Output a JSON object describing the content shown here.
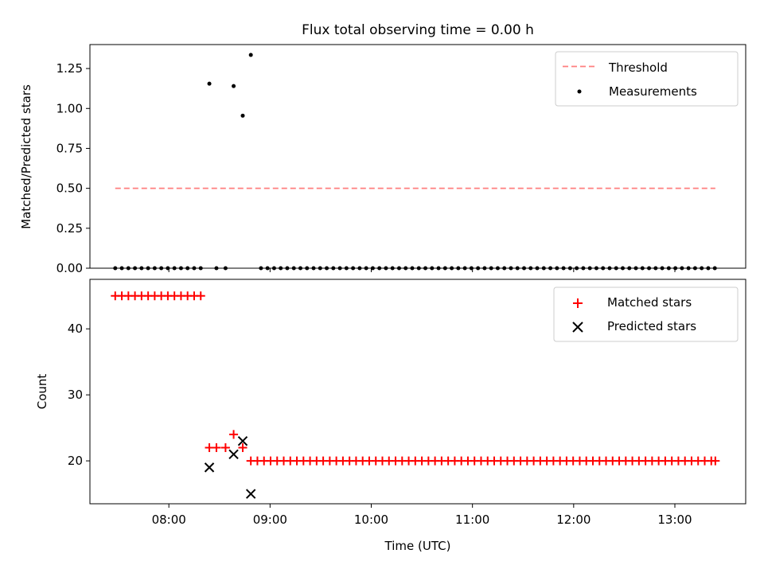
{
  "chart_data": {
    "title": "Flux total observing time = 0.00 h",
    "xlabel": "Time (UTC)",
    "x_unit": "hours UTC",
    "xlim": [
      7.22,
      13.7
    ],
    "xticks": [
      {
        "v": 8,
        "label": "08:00"
      },
      {
        "v": 9,
        "label": "09:00"
      },
      {
        "v": 10,
        "label": "10:00"
      },
      {
        "v": 11,
        "label": "11:00"
      },
      {
        "v": 12,
        "label": "12:00"
      },
      {
        "v": 13,
        "label": "13:00"
      }
    ],
    "colors": {
      "threshold": "#ff7f7f",
      "matched": "#ff0000",
      "predicted": "#000000",
      "measurement": "#000000"
    },
    "top": {
      "type": "scatter",
      "ylabel": "Matched/Predicted stars",
      "ylim": [
        0,
        1.4
      ],
      "yticks": [
        {
          "v": 0,
          "label": "0.00"
        },
        {
          "v": 0.25,
          "label": "0.25"
        },
        {
          "v": 0.5,
          "label": "0.50"
        },
        {
          "v": 0.75,
          "label": "0.75"
        },
        {
          "v": 1.0,
          "label": "1.00"
        },
        {
          "v": 1.25,
          "label": "1.25"
        }
      ],
      "threshold": {
        "name": "Threshold",
        "x": [
          7.47,
          13.4
        ],
        "y": 0.5
      },
      "legend": [
        "Threshold",
        "Measurements"
      ],
      "legend_loc": "upper right",
      "measurements": {
        "name": "Measurements",
        "points": [
          [
            7.47,
            0
          ],
          [
            7.535,
            0
          ],
          [
            7.6,
            0
          ],
          [
            7.665,
            0
          ],
          [
            7.73,
            0
          ],
          [
            7.795,
            0
          ],
          [
            7.86,
            0
          ],
          [
            7.925,
            0
          ],
          [
            7.99,
            0
          ],
          [
            8.055,
            0
          ],
          [
            8.12,
            0
          ],
          [
            8.185,
            0
          ],
          [
            8.25,
            0
          ],
          [
            8.315,
            0
          ],
          [
            8.4,
            1.155
          ],
          [
            8.47,
            0
          ],
          [
            8.56,
            0
          ],
          [
            8.64,
            1.14
          ],
          [
            8.73,
            0.955
          ],
          [
            8.81,
            1.335
          ],
          [
            8.91,
            0
          ],
          [
            8.975,
            0
          ],
          [
            9.04,
            0
          ],
          [
            9.105,
            0
          ],
          [
            9.17,
            0
          ],
          [
            9.235,
            0
          ],
          [
            9.3,
            0
          ],
          [
            9.365,
            0
          ],
          [
            9.43,
            0
          ],
          [
            9.495,
            0
          ],
          [
            9.56,
            0
          ],
          [
            9.625,
            0
          ],
          [
            9.69,
            0
          ],
          [
            9.755,
            0
          ],
          [
            9.82,
            0
          ],
          [
            9.885,
            0
          ],
          [
            9.95,
            0
          ],
          [
            10.015,
            0
          ],
          [
            10.08,
            0
          ],
          [
            10.145,
            0
          ],
          [
            10.21,
            0
          ],
          [
            10.275,
            0
          ],
          [
            10.34,
            0
          ],
          [
            10.405,
            0
          ],
          [
            10.47,
            0
          ],
          [
            10.535,
            0
          ],
          [
            10.6,
            0
          ],
          [
            10.665,
            0
          ],
          [
            10.73,
            0
          ],
          [
            10.795,
            0
          ],
          [
            10.86,
            0
          ],
          [
            10.925,
            0
          ],
          [
            10.99,
            0
          ],
          [
            11.055,
            0
          ],
          [
            11.12,
            0
          ],
          [
            11.185,
            0
          ],
          [
            11.25,
            0
          ],
          [
            11.315,
            0
          ],
          [
            11.38,
            0
          ],
          [
            11.445,
            0
          ],
          [
            11.51,
            0
          ],
          [
            11.575,
            0
          ],
          [
            11.64,
            0
          ],
          [
            11.705,
            0
          ],
          [
            11.77,
            0
          ],
          [
            11.835,
            0
          ],
          [
            11.9,
            0
          ],
          [
            11.965,
            0
          ],
          [
            12.03,
            0
          ],
          [
            12.095,
            0
          ],
          [
            12.16,
            0
          ],
          [
            12.225,
            0
          ],
          [
            12.29,
            0
          ],
          [
            12.355,
            0
          ],
          [
            12.42,
            0
          ],
          [
            12.485,
            0
          ],
          [
            12.55,
            0
          ],
          [
            12.615,
            0
          ],
          [
            12.68,
            0
          ],
          [
            12.745,
            0
          ],
          [
            12.81,
            0
          ],
          [
            12.875,
            0
          ],
          [
            12.94,
            0
          ],
          [
            13.005,
            0
          ],
          [
            13.07,
            0
          ],
          [
            13.135,
            0
          ],
          [
            13.2,
            0
          ],
          [
            13.265,
            0
          ],
          [
            13.33,
            0
          ],
          [
            13.395,
            0
          ]
        ]
      }
    },
    "bottom": {
      "type": "scatter",
      "ylabel": "Count",
      "ylim": [
        13.5,
        47.5
      ],
      "yticks": [
        {
          "v": 20,
          "label": "20"
        },
        {
          "v": 30,
          "label": "30"
        },
        {
          "v": 40,
          "label": "40"
        }
      ],
      "legend": [
        "Matched stars",
        "Predicted stars"
      ],
      "legend_loc": "upper right",
      "matched": {
        "name": "Matched stars",
        "points": [
          [
            7.47,
            45
          ],
          [
            7.535,
            45
          ],
          [
            7.6,
            45
          ],
          [
            7.665,
            45
          ],
          [
            7.73,
            45
          ],
          [
            7.795,
            45
          ],
          [
            7.86,
            45
          ],
          [
            7.925,
            45
          ],
          [
            7.99,
            45
          ],
          [
            8.055,
            45
          ],
          [
            8.12,
            45
          ],
          [
            8.185,
            45
          ],
          [
            8.25,
            45
          ],
          [
            8.315,
            45
          ],
          [
            8.4,
            22
          ],
          [
            8.47,
            22
          ],
          [
            8.56,
            22
          ],
          [
            8.64,
            24
          ],
          [
            8.73,
            22
          ],
          [
            8.81,
            20
          ],
          [
            8.875,
            20
          ],
          [
            8.94,
            20
          ],
          [
            9.005,
            20
          ],
          [
            9.07,
            20
          ],
          [
            9.135,
            20
          ],
          [
            9.2,
            20
          ],
          [
            9.265,
            20
          ],
          [
            9.33,
            20
          ],
          [
            9.395,
            20
          ],
          [
            9.46,
            20
          ],
          [
            9.525,
            20
          ],
          [
            9.59,
            20
          ],
          [
            9.655,
            20
          ],
          [
            9.72,
            20
          ],
          [
            9.785,
            20
          ],
          [
            9.85,
            20
          ],
          [
            9.915,
            20
          ],
          [
            9.98,
            20
          ],
          [
            10.045,
            20
          ],
          [
            10.11,
            20
          ],
          [
            10.175,
            20
          ],
          [
            10.24,
            20
          ],
          [
            10.305,
            20
          ],
          [
            10.37,
            20
          ],
          [
            10.435,
            20
          ],
          [
            10.5,
            20
          ],
          [
            10.565,
            20
          ],
          [
            10.63,
            20
          ],
          [
            10.695,
            20
          ],
          [
            10.76,
            20
          ],
          [
            10.825,
            20
          ],
          [
            10.89,
            20
          ],
          [
            10.955,
            20
          ],
          [
            11.02,
            20
          ],
          [
            11.085,
            20
          ],
          [
            11.15,
            20
          ],
          [
            11.215,
            20
          ],
          [
            11.28,
            20
          ],
          [
            11.345,
            20
          ],
          [
            11.41,
            20
          ],
          [
            11.475,
            20
          ],
          [
            11.54,
            20
          ],
          [
            11.605,
            20
          ],
          [
            11.67,
            20
          ],
          [
            11.735,
            20
          ],
          [
            11.8,
            20
          ],
          [
            11.865,
            20
          ],
          [
            11.93,
            20
          ],
          [
            11.995,
            20
          ],
          [
            12.06,
            20
          ],
          [
            12.125,
            20
          ],
          [
            12.19,
            20
          ],
          [
            12.255,
            20
          ],
          [
            12.32,
            20
          ],
          [
            12.385,
            20
          ],
          [
            12.45,
            20
          ],
          [
            12.515,
            20
          ],
          [
            12.58,
            20
          ],
          [
            12.645,
            20
          ],
          [
            12.71,
            20
          ],
          [
            12.775,
            20
          ],
          [
            12.84,
            20
          ],
          [
            12.905,
            20
          ],
          [
            12.97,
            20
          ],
          [
            13.035,
            20
          ],
          [
            13.1,
            20
          ],
          [
            13.165,
            20
          ],
          [
            13.23,
            20
          ],
          [
            13.295,
            20
          ],
          [
            13.36,
            20
          ],
          [
            13.4,
            20
          ]
        ]
      },
      "predicted": {
        "name": "Predicted stars",
        "points": [
          [
            8.4,
            19
          ],
          [
            8.64,
            21
          ],
          [
            8.73,
            23
          ],
          [
            8.81,
            15
          ]
        ]
      }
    }
  }
}
